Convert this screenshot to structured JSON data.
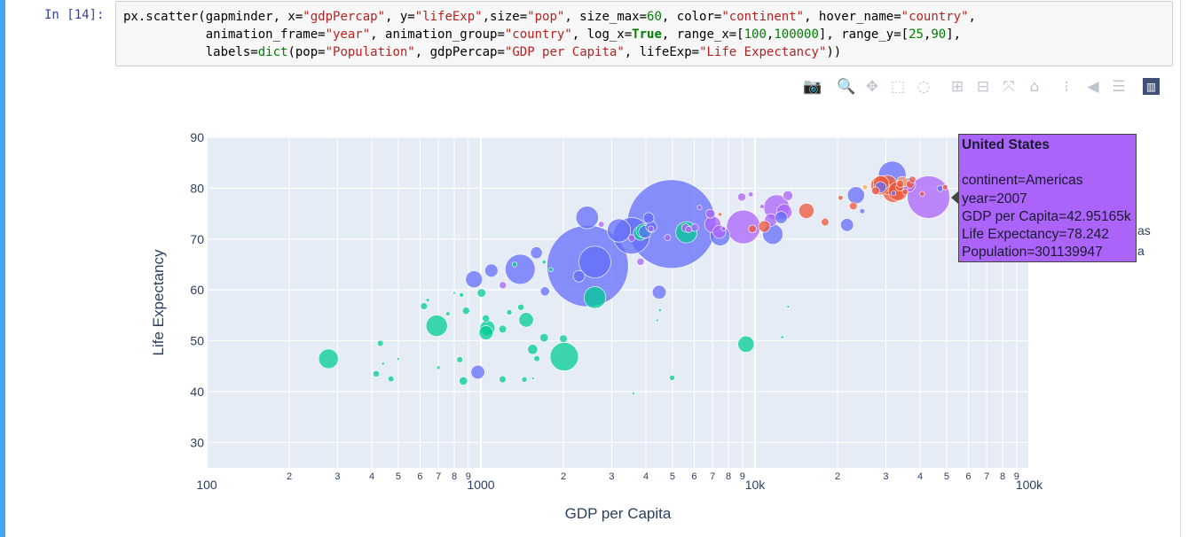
{
  "notebook": {
    "prompt": "In [14]:",
    "code_lines": [
      [
        [
          "",
          "px.scatter(gapminder, x="
        ],
        [
          "s",
          "\"gdpPercap\""
        ],
        [
          "",
          ", y="
        ],
        [
          "s",
          "\"lifeExp\""
        ],
        [
          "",
          ",size="
        ],
        [
          "s",
          "\"pop\""
        ],
        [
          "",
          ", size_max="
        ],
        [
          "n",
          "60"
        ],
        [
          "",
          ", color="
        ],
        [
          "s",
          "\"continent\""
        ],
        [
          "",
          ", hover_name="
        ],
        [
          "s",
          "\"country\""
        ],
        [
          "",
          ","
        ]
      ],
      [
        [
          "",
          "           animation_frame="
        ],
        [
          "s",
          "\"year\""
        ],
        [
          "",
          ", animation_group="
        ],
        [
          "s",
          "\"country\""
        ],
        [
          "",
          ", log_x="
        ],
        [
          "k",
          "True"
        ],
        [
          "",
          ", range_x=["
        ],
        [
          "n",
          "100"
        ],
        [
          "",
          ","
        ],
        [
          "n",
          "100000"
        ],
        [
          "",
          "], range_y=["
        ],
        [
          "n",
          "25"
        ],
        [
          "",
          ","
        ],
        [
          "n",
          "90"
        ],
        [
          "",
          "],"
        ]
      ],
      [
        [
          "",
          "           labels="
        ],
        [
          "n",
          "dict"
        ],
        [
          "",
          "(pop="
        ],
        [
          "s",
          "\"Population\""
        ],
        [
          "",
          ", gdpPercap="
        ],
        [
          "s",
          "\"GDP per Capita\""
        ],
        [
          "",
          ", lifeExp="
        ],
        [
          "s",
          "\"Life Expectancy\""
        ],
        [
          "",
          "))"
        ]
      ]
    ]
  },
  "modebar": {
    "buttons": [
      {
        "name": "camera-icon",
        "glyph": "📷"
      },
      {
        "name": "zoom-icon",
        "glyph": "🔍"
      },
      {
        "name": "pan-icon",
        "glyph": "✥"
      },
      {
        "name": "box-select-icon",
        "glyph": "⬚"
      },
      {
        "name": "lasso-select-icon",
        "glyph": "◌"
      },
      {
        "name": "zoom-in-icon",
        "glyph": "⊞"
      },
      {
        "name": "zoom-out-icon",
        "glyph": "⊟"
      },
      {
        "name": "autoscale-icon",
        "glyph": "⤧"
      },
      {
        "name": "home-icon",
        "glyph": "⌂"
      },
      {
        "name": "toggle-spikelines-icon",
        "glyph": "⁝"
      },
      {
        "name": "hover-closest-icon",
        "glyph": "◀"
      },
      {
        "name": "hover-compare-icon",
        "glyph": "☰"
      },
      {
        "name": "plotly-logo-icon",
        "glyph": "▥"
      }
    ],
    "active": "zoom-icon"
  },
  "chart_data": {
    "type": "scatter",
    "xlabel": "GDP per Capita",
    "ylabel": "Life Expectancy",
    "x_scale": "log",
    "xlim": [
      100,
      100000
    ],
    "ylim": [
      25,
      90
    ],
    "x_ticks_major": [
      {
        "v": 100,
        "label": "100"
      },
      {
        "v": 1000,
        "label": "1000"
      },
      {
        "v": 10000,
        "label": "10k"
      },
      {
        "v": 100000,
        "label": "100k"
      }
    ],
    "x_ticks_minor": [
      {
        "v": 200,
        "label": "2"
      },
      {
        "v": 300,
        "label": "3"
      },
      {
        "v": 400,
        "label": "4"
      },
      {
        "v": 500,
        "label": "5"
      },
      {
        "v": 600,
        "label": "6"
      },
      {
        "v": 700,
        "label": "7"
      },
      {
        "v": 800,
        "label": "8"
      },
      {
        "v": 900,
        "label": "9"
      },
      {
        "v": 2000,
        "label": "2"
      },
      {
        "v": 3000,
        "label": "3"
      },
      {
        "v": 4000,
        "label": "4"
      },
      {
        "v": 5000,
        "label": "5"
      },
      {
        "v": 6000,
        "label": "6"
      },
      {
        "v": 7000,
        "label": "7"
      },
      {
        "v": 8000,
        "label": "8"
      },
      {
        "v": 9000,
        "label": "9"
      },
      {
        "v": 20000,
        "label": "2"
      },
      {
        "v": 30000,
        "label": "3"
      },
      {
        "v": 40000,
        "label": "4"
      },
      {
        "v": 50000,
        "label": "5"
      },
      {
        "v": 60000,
        "label": "6"
      },
      {
        "v": 70000,
        "label": "7"
      },
      {
        "v": 80000,
        "label": "8"
      },
      {
        "v": 90000,
        "label": "9"
      }
    ],
    "y_ticks": [
      30,
      40,
      50,
      60,
      70,
      80,
      90
    ],
    "colors": {
      "Asia": "#636efa",
      "Europe": "#ef553b",
      "Africa": "#00cc96",
      "Americas": "#ab63fa",
      "Oceania": "#ffa15a"
    },
    "plot_bg": "#e5ecf6",
    "points": [
      {
        "x": 4959,
        "y": 72.96,
        "pop": 1318683096,
        "c": "Asia"
      },
      {
        "x": 2452,
        "y": 64.7,
        "pop": 1110396331,
        "c": "Asia"
      },
      {
        "x": 3541,
        "y": 70.65,
        "pop": 223547000,
        "c": "Asia"
      },
      {
        "x": 2605,
        "y": 65.48,
        "pop": 169270617,
        "c": "Asia"
      },
      {
        "x": 1391,
        "y": 64.06,
        "pop": 150448339,
        "c": "Asia"
      },
      {
        "x": 31656,
        "y": 82.6,
        "pop": 127467972,
        "c": "Asia"
      },
      {
        "x": 3190,
        "y": 71.69,
        "pop": 91077287,
        "c": "Asia"
      },
      {
        "x": 2442,
        "y": 74.25,
        "pop": 85262356,
        "c": "Asia"
      },
      {
        "x": 11606,
        "y": 70.96,
        "pop": 69453570,
        "c": "Asia"
      },
      {
        "x": 7458,
        "y": 70.62,
        "pop": 65068149,
        "c": "Asia"
      },
      {
        "x": 944,
        "y": 62.07,
        "pop": 47761980,
        "c": "Asia"
      },
      {
        "x": 23348,
        "y": 78.62,
        "pop": 49044790,
        "c": "Asia"
      },
      {
        "x": 4471,
        "y": 59.55,
        "pop": 31889923,
        "c": "Asia"
      },
      {
        "x": 975,
        "y": 43.83,
        "pop": 31889923,
        "c": "Asia"
      },
      {
        "x": 1092,
        "y": 63.79,
        "pop": 28901790,
        "c": "Asia"
      },
      {
        "x": 21655,
        "y": 72.78,
        "pop": 27601038,
        "c": "Asia"
      },
      {
        "x": 3970,
        "y": 71.42,
        "pop": 27499638,
        "c": "Asia"
      },
      {
        "x": 12452,
        "y": 74.24,
        "pop": 24821286,
        "c": "Asia"
      },
      {
        "x": 4185,
        "y": 72.4,
        "pop": 20378239,
        "c": "Asia"
      },
      {
        "x": 2280,
        "y": 62.7,
        "pop": 22211743,
        "c": "Asia"
      },
      {
        "x": 28718,
        "y": 80.2,
        "pop": 21000000,
        "c": "Asia"
      },
      {
        "x": 4091,
        "y": 74.14,
        "pop": 19314747,
        "c": "Asia"
      },
      {
        "x": 1594,
        "y": 67.3,
        "pop": 23301725,
        "c": "Asia"
      },
      {
        "x": 1713,
        "y": 59.72,
        "pop": 14131858,
        "c": "Asia"
      },
      {
        "x": 47307,
        "y": 79.97,
        "pop": 6426679,
        "c": "Asia"
      },
      {
        "x": 24600,
        "y": 75.5,
        "pop": 4500000,
        "c": "Asia"
      },
      {
        "x": 32000,
        "y": 79.0,
        "pop": 4000000,
        "c": "Asia"
      },
      {
        "x": 42952,
        "y": 78.24,
        "pop": 301139947,
        "c": "Americas"
      },
      {
        "x": 9066,
        "y": 72.39,
        "pop": 190010647,
        "c": "Americas"
      },
      {
        "x": 11978,
        "y": 76.2,
        "pop": 108700891,
        "c": "Americas"
      },
      {
        "x": 7007,
        "y": 72.89,
        "pop": 44227550,
        "c": "Americas"
      },
      {
        "x": 12779,
        "y": 75.32,
        "pop": 40301927,
        "c": "Americas"
      },
      {
        "x": 36319,
        "y": 80.65,
        "pop": 33390141,
        "c": "Americas"
      },
      {
        "x": 7409,
        "y": 71.42,
        "pop": 28674757,
        "c": "Americas"
      },
      {
        "x": 11416,
        "y": 73.75,
        "pop": 26084662,
        "c": "Americas"
      },
      {
        "x": 13172,
        "y": 78.55,
        "pop": 16284741,
        "c": "Americas"
      },
      {
        "x": 6873,
        "y": 74.99,
        "pop": 13755680,
        "c": "Americas"
      },
      {
        "x": 3822,
        "y": 65.55,
        "pop": 9119152,
        "c": "Americas"
      },
      {
        "x": 5580,
        "y": 72.2,
        "pop": 11416987,
        "c": "Americas"
      },
      {
        "x": 8948,
        "y": 78.27,
        "pop": 11416987,
        "c": "Americas"
      },
      {
        "x": 6025,
        "y": 72.24,
        "pop": 9319622,
        "c": "Americas"
      },
      {
        "x": 1202,
        "y": 60.92,
        "pop": 8502814,
        "c": "Americas"
      },
      {
        "x": 3548,
        "y": 70.2,
        "pop": 7483763,
        "c": "Americas"
      },
      {
        "x": 5728,
        "y": 71.88,
        "pop": 6939688,
        "c": "Americas"
      },
      {
        "x": 4173,
        "y": 72.0,
        "pop": 5675356,
        "c": "Americas"
      },
      {
        "x": 2749,
        "y": 72.9,
        "pop": 5675356,
        "c": "Americas"
      },
      {
        "x": 9645,
        "y": 78.78,
        "pop": 4133884,
        "c": "Americas"
      },
      {
        "x": 6276,
        "y": 76.2,
        "pop": 3600000,
        "c": "Americas"
      },
      {
        "x": 7670,
        "y": 72.0,
        "pop": 3400000,
        "c": "Americas"
      },
      {
        "x": 10611,
        "y": 76.4,
        "pop": 3447496,
        "c": "Americas"
      },
      {
        "x": 4797,
        "y": 70.26,
        "pop": 6762618,
        "c": "Americas"
      },
      {
        "x": 32003,
        "y": 79.4,
        "pop": 82400996,
        "c": "Europe"
      },
      {
        "x": 30470,
        "y": 80.66,
        "pop": 61083916,
        "c": "Europe"
      },
      {
        "x": 33203,
        "y": 79.43,
        "pop": 60776238,
        "c": "Europe"
      },
      {
        "x": 28570,
        "y": 80.55,
        "pop": 58147733,
        "c": "Europe"
      },
      {
        "x": 28821,
        "y": 80.94,
        "pop": 40448191,
        "c": "Europe"
      },
      {
        "x": 15390,
        "y": 75.56,
        "pop": 38518241,
        "c": "Europe"
      },
      {
        "x": 10808,
        "y": 72.48,
        "pop": 22276056,
        "c": "Europe"
      },
      {
        "x": 36798,
        "y": 80.76,
        "pop": 10706290,
        "c": "Europe"
      },
      {
        "x": 33693,
        "y": 80.2,
        "pop": 10392226,
        "c": "Europe"
      },
      {
        "x": 27538,
        "y": 79.48,
        "pop": 10228744,
        "c": "Europe"
      },
      {
        "x": 22833,
        "y": 76.49,
        "pop": 10228744,
        "c": "Europe"
      },
      {
        "x": 18009,
        "y": 73.34,
        "pop": 9956108,
        "c": "Europe"
      },
      {
        "x": 33860,
        "y": 80.88,
        "pop": 9031088,
        "c": "Europe"
      },
      {
        "x": 9787,
        "y": 72.0,
        "pop": 10150265,
        "c": "Europe"
      },
      {
        "x": 49357,
        "y": 80.2,
        "pop": 4627926,
        "c": "Europe"
      },
      {
        "x": 35278,
        "y": 79.3,
        "pop": 5468120,
        "c": "Europe"
      },
      {
        "x": 40676,
        "y": 78.9,
        "pop": 4109086,
        "c": "Europe"
      },
      {
        "x": 20510,
        "y": 78.1,
        "pop": 4109086,
        "c": "Europe"
      },
      {
        "x": 7446,
        "y": 74.85,
        "pop": 2000000,
        "c": "Europe"
      },
      {
        "x": 37506,
        "y": 81.7,
        "pop": 7554661,
        "c": "Europe"
      },
      {
        "x": 34435,
        "y": 81.24,
        "pop": 20434176,
        "c": "Oceania"
      },
      {
        "x": 25185,
        "y": 80.2,
        "pop": 4115771,
        "c": "Oceania"
      },
      {
        "x": 2014,
        "y": 46.86,
        "pop": 135031164,
        "c": "Africa"
      },
      {
        "x": 2606,
        "y": 58.5,
        "pop": 80264543,
        "c": "Africa"
      },
      {
        "x": 690,
        "y": 52.95,
        "pop": 76511887,
        "c": "Africa"
      },
      {
        "x": 278,
        "y": 46.46,
        "pop": 64606759,
        "c": "Africa"
      },
      {
        "x": 9270,
        "y": 49.34,
        "pop": 43997828,
        "c": "Africa"
      },
      {
        "x": 5621,
        "y": 71.34,
        "pop": 76511887,
        "c": "Africa"
      },
      {
        "x": 1463,
        "y": 54.11,
        "pop": 35610177,
        "c": "Africa"
      },
      {
        "x": 1056,
        "y": 52.52,
        "pop": 38139640,
        "c": "Africa"
      },
      {
        "x": 1044,
        "y": 51.58,
        "pop": 33333216,
        "c": "Africa"
      },
      {
        "x": 3821,
        "y": 71.16,
        "pop": 33333216,
        "c": "Africa"
      },
      {
        "x": 3906,
        "y": 71.6,
        "pop": 33333216,
        "c": "Africa"
      },
      {
        "x": 4985,
        "y": 42.73,
        "pop": 5000000,
        "c": "Africa"
      },
      {
        "x": 1328,
        "y": 65.0,
        "pop": 4000000,
        "c": "Africa"
      },
      {
        "x": 1441,
        "y": 42.38,
        "pop": 5000000,
        "c": "Africa"
      },
      {
        "x": 1545,
        "y": 48.3,
        "pop": 17000000,
        "c": "Africa"
      },
      {
        "x": 1600,
        "y": 46.5,
        "pop": 6000000,
        "c": "Africa"
      },
      {
        "x": 1201,
        "y": 52.3,
        "pop": 10000000,
        "c": "Africa"
      },
      {
        "x": 1700,
        "y": 50.6,
        "pop": 12000000,
        "c": "Africa"
      },
      {
        "x": 1005,
        "y": 59.4,
        "pop": 12000000,
        "c": "Africa"
      },
      {
        "x": 883,
        "y": 55.9,
        "pop": 9000000,
        "c": "Africa"
      },
      {
        "x": 863,
        "y": 42.1,
        "pop": 12000000,
        "c": "Africa"
      },
      {
        "x": 758,
        "y": 55.3,
        "pop": 3000000,
        "c": "Africa"
      },
      {
        "x": 620,
        "y": 56.8,
        "pop": 8000000,
        "c": "Africa"
      },
      {
        "x": 415,
        "y": 43.5,
        "pop": 7000000,
        "c": "Africa"
      },
      {
        "x": 430,
        "y": 49.5,
        "pop": 6000000,
        "c": "Africa"
      },
      {
        "x": 470,
        "y": 42.5,
        "pop": 6000000,
        "c": "Africa"
      },
      {
        "x": 1043,
        "y": 54.4,
        "pop": 9000000,
        "c": "Africa"
      },
      {
        "x": 1200,
        "y": 42.4,
        "pop": 8000000,
        "c": "Africa"
      },
      {
        "x": 837,
        "y": 46.3,
        "pop": 6000000,
        "c": "Africa"
      },
      {
        "x": 1270,
        "y": 55.6,
        "pop": 5000000,
        "c": "Africa"
      },
      {
        "x": 2000,
        "y": 50.4,
        "pop": 10000000,
        "c": "Africa"
      },
      {
        "x": 1400,
        "y": 56.6,
        "pop": 7000000,
        "c": "Africa"
      },
      {
        "x": 700,
        "y": 44.7,
        "pop": 2000000,
        "c": "Africa"
      },
      {
        "x": 1700,
        "y": 65.5,
        "pop": 2500000,
        "c": "Africa"
      },
      {
        "x": 850,
        "y": 59.0,
        "pop": 3500000,
        "c": "Africa"
      },
      {
        "x": 1800,
        "y": 64.0,
        "pop": 3000000,
        "c": "Africa"
      },
      {
        "x": 4500,
        "y": 56.0,
        "pop": 1500000,
        "c": "Africa"
      },
      {
        "x": 3600,
        "y": 39.6,
        "pop": 1000000,
        "c": "Africa"
      },
      {
        "x": 12570,
        "y": 50.7,
        "pop": 1500000,
        "c": "Africa"
      },
      {
        "x": 13206,
        "y": 56.7,
        "pop": 1000000,
        "c": "Africa"
      },
      {
        "x": 640,
        "y": 58.0,
        "pop": 2000000,
        "c": "Africa"
      },
      {
        "x": 500,
        "y": 46.4,
        "pop": 1000000,
        "c": "Africa"
      },
      {
        "x": 440,
        "y": 45.5,
        "pop": 1500000,
        "c": "Africa"
      },
      {
        "x": 1550,
        "y": 42.6,
        "pop": 1000000,
        "c": "Africa"
      },
      {
        "x": 800,
        "y": 59.4,
        "pop": 1000000,
        "c": "Africa"
      },
      {
        "x": 4400,
        "y": 54.0,
        "pop": 1000000,
        "c": "Africa"
      }
    ]
  },
  "legend_partial": [
    {
      "text": "as"
    },
    {
      "text": "a"
    }
  ],
  "hover": {
    "country": "United States",
    "continent": "continent=Americas",
    "year": "year=2007",
    "gdp": "GDP per Capita=42.95165k",
    "life": "Life Expectancy=78.242",
    "pop": "Population=301139947",
    "bg_color": "#ab63fa"
  }
}
